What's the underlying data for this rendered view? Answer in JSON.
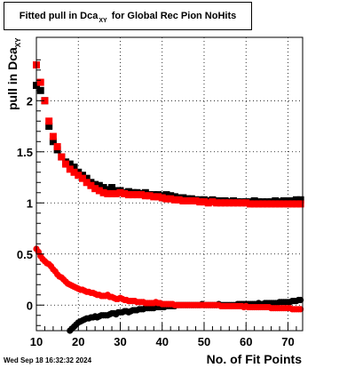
{
  "title": {
    "prefix": "Fitted pull in Dca",
    "subscript": "XY",
    "suffix": "for Global Rec Pion NoHits"
  },
  "ylabel": {
    "main": "pull in Dca",
    "subscript": "XY"
  },
  "xlabel": "No. of Fit Points",
  "datestamp": "Wed Sep 18 16:32:32 2024",
  "colors": {
    "series_black": "#000000",
    "series_red": "#ff0000",
    "grid": "#000000",
    "frame": "#000000"
  },
  "chart_data": {
    "type": "scatter",
    "xlim": [
      10,
      73.5
    ],
    "ylim": [
      -0.25,
      2.62
    ],
    "xticks": [
      10,
      20,
      30,
      40,
      50,
      60,
      70
    ],
    "yticks": [
      0,
      0.5,
      1,
      1.5,
      2
    ],
    "ytick_labels": [
      "0",
      "0.5",
      "1",
      "1.5",
      "2"
    ],
    "grid": true,
    "series": [
      {
        "color": "#000000",
        "marker": "square",
        "x": [
          10,
          11,
          12,
          13,
          14,
          15,
          16,
          17,
          18,
          19,
          20,
          21,
          22,
          23,
          24,
          25,
          26,
          27,
          28,
          29,
          30,
          31,
          32,
          33,
          34,
          35,
          36,
          37,
          38,
          39,
          40,
          41,
          42,
          43,
          44,
          45,
          46,
          47,
          48,
          49,
          50,
          51,
          52,
          53,
          54,
          55,
          56,
          57,
          58,
          59,
          60,
          61,
          62,
          63,
          64,
          65,
          66,
          67,
          68,
          69,
          70,
          71,
          72,
          73
        ],
        "y": [
          2.15,
          2.1,
          2.0,
          1.75,
          1.6,
          1.52,
          1.45,
          1.4,
          1.38,
          1.35,
          1.3,
          1.27,
          1.24,
          1.2,
          1.18,
          1.17,
          1.15,
          1.13,
          1.15,
          1.12,
          1.12,
          1.1,
          1.11,
          1.1,
          1.1,
          1.09,
          1.1,
          1.08,
          1.08,
          1.08,
          1.07,
          1.08,
          1.07,
          1.06,
          1.05,
          1.05,
          1.04,
          1.04,
          1.03,
          1.03,
          1.03,
          1.02,
          1.03,
          1.02,
          1.02,
          1.02,
          1.01,
          1.02,
          1.01,
          1.01,
          1.01,
          1.01,
          1.02,
          1.01,
          1.01,
          1.01,
          1.01,
          1.02,
          1.01,
          1.02,
          1.02,
          1.02,
          1.03,
          1.03
        ]
      },
      {
        "color": "#ff0000",
        "marker": "square",
        "x": [
          10,
          11,
          12,
          13,
          14,
          15,
          16,
          17,
          18,
          19,
          20,
          21,
          22,
          23,
          24,
          25,
          26,
          27,
          28,
          29,
          30,
          31,
          32,
          33,
          34,
          35,
          36,
          37,
          38,
          39,
          40,
          41,
          42,
          43,
          44,
          45,
          46,
          47,
          48,
          49,
          50,
          51,
          52,
          53,
          54,
          55,
          56,
          57,
          58,
          59,
          60,
          61,
          62,
          63,
          64,
          65,
          66,
          67,
          68,
          69,
          70,
          71,
          72,
          73
        ],
        "y": [
          2.35,
          2.18,
          2.0,
          1.8,
          1.65,
          1.55,
          1.45,
          1.38,
          1.33,
          1.3,
          1.27,
          1.24,
          1.2,
          1.17,
          1.14,
          1.12,
          1.1,
          1.09,
          1.09,
          1.09,
          1.1,
          1.09,
          1.08,
          1.08,
          1.08,
          1.08,
          1.07,
          1.07,
          1.06,
          1.06,
          1.05,
          1.04,
          1.04,
          1.03,
          1.03,
          1.02,
          1.02,
          1.02,
          1.02,
          1.01,
          1.01,
          1.0,
          1.01,
          1.0,
          1.0,
          1.0,
          1.0,
          1.0,
          1.0,
          1.0,
          1.0,
          0.99,
          0.99,
          0.99,
          0.99,
          0.99,
          0.99,
          0.99,
          0.99,
          0.99,
          0.99,
          0.99,
          0.99,
          0.99
        ]
      },
      {
        "color": "#000000",
        "marker": "circle",
        "x": [
          18,
          18.5,
          19,
          19.5,
          20,
          20.5,
          21,
          21.5,
          22,
          22.5,
          23,
          23.5,
          24,
          24.5,
          25,
          25.5,
          26,
          26.5,
          27,
          27.5,
          28,
          28.5,
          29,
          29.5,
          30,
          30.5,
          31,
          31.5,
          32,
          32.5,
          33,
          33.5,
          34,
          34.5,
          35,
          35.5,
          36,
          36.5,
          37,
          37.5,
          38,
          38.5,
          39,
          39.5,
          40,
          40.5,
          41,
          41.5,
          42,
          42.5,
          43,
          43.5,
          44,
          44.5,
          45,
          45.5,
          46,
          46.5,
          47,
          47.5,
          48,
          48.5,
          49,
          49.5,
          50,
          50.5,
          51,
          51.5,
          52,
          52.5,
          53,
          53.5,
          54,
          54.5,
          55,
          55.5,
          56,
          56.5,
          57,
          57.5,
          58,
          58.5,
          59,
          59.5,
          60,
          60.5,
          61,
          61.5,
          62,
          62.5,
          63,
          63.5,
          64,
          64.5,
          65,
          65.5,
          66,
          66.5,
          67,
          67.5,
          68,
          68.5,
          69,
          69.5,
          70,
          70.5,
          71,
          71.5,
          72,
          72.5,
          73
        ],
        "y": [
          -0.25,
          -0.23,
          -0.21,
          -0.19,
          -0.17,
          -0.16,
          -0.15,
          -0.14,
          -0.13,
          -0.13,
          -0.12,
          -0.12,
          -0.11,
          -0.12,
          -0.11,
          -0.1,
          -0.1,
          -0.1,
          -0.1,
          -0.09,
          -0.08,
          -0.08,
          -0.09,
          -0.07,
          -0.07,
          -0.07,
          -0.06,
          -0.06,
          -0.07,
          -0.06,
          -0.05,
          -0.05,
          -0.05,
          -0.04,
          -0.04,
          -0.04,
          -0.03,
          -0.03,
          -0.03,
          -0.03,
          -0.03,
          -0.02,
          -0.02,
          -0.02,
          -0.02,
          -0.02,
          -0.01,
          -0.01,
          -0.01,
          -0.01,
          -0.01,
          0.0,
          0.0,
          0.0,
          0.0,
          0.0,
          0.0,
          0.0,
          0.0,
          0.0,
          0.0,
          0.0,
          0.0,
          0.01,
          0.0,
          0.0,
          0.0,
          0.0,
          0.0,
          0.0,
          0.0,
          0.01,
          0.0,
          0.0,
          0.0,
          0.0,
          0.0,
          0.0,
          0.0,
          0.0,
          0.01,
          0.01,
          0.01,
          0.01,
          0.01,
          0.01,
          0.01,
          0.01,
          0.01,
          0.01,
          0.02,
          0.01,
          0.01,
          0.02,
          0.02,
          0.02,
          0.02,
          0.02,
          0.02,
          0.02,
          0.03,
          0.03,
          0.03,
          0.03,
          0.03,
          0.03,
          0.04,
          0.04,
          0.04,
          0.05,
          0.05
        ]
      },
      {
        "color": "#ff0000",
        "marker": "circle",
        "x": [
          10,
          10.5,
          11,
          11.5,
          12,
          12.5,
          13,
          13.5,
          14,
          14.5,
          15,
          15.5,
          16,
          16.5,
          17,
          17.5,
          18,
          18.5,
          19,
          19.5,
          20,
          20.5,
          21,
          21.5,
          22,
          22.5,
          23,
          23.5,
          24,
          24.5,
          25,
          25.5,
          26,
          26.5,
          27,
          27.5,
          28,
          28.5,
          29,
          29.5,
          30,
          30.5,
          31,
          31.5,
          32,
          32.5,
          33,
          33.5,
          34,
          34.5,
          35,
          35.5,
          36,
          36.5,
          37,
          37.5,
          38,
          38.5,
          39,
          39.5,
          40,
          40.5,
          41,
          41.5,
          42,
          42.5,
          43,
          43.5,
          44,
          44.5,
          45,
          45.5,
          46,
          46.5,
          47,
          47.5,
          48,
          48.5,
          49,
          49.5,
          50,
          50.5,
          51,
          51.5,
          52,
          52.5,
          53,
          53.5,
          54,
          54.5,
          55,
          55.5,
          56,
          56.5,
          57,
          57.5,
          58,
          58.5,
          59,
          59.5,
          60,
          60.5,
          61,
          61.5,
          62,
          62.5,
          63,
          63.5,
          64,
          64.5,
          65,
          65.5,
          66,
          66.5,
          67,
          67.5,
          68,
          68.5,
          69,
          69.5,
          70,
          70.5,
          71,
          71.5,
          72,
          72.5,
          73
        ],
        "y": [
          0.55,
          0.52,
          0.48,
          0.45,
          0.43,
          0.41,
          0.4,
          0.38,
          0.35,
          0.33,
          0.3,
          0.28,
          0.27,
          0.25,
          0.23,
          0.21,
          0.2,
          0.19,
          0.18,
          0.17,
          0.16,
          0.15,
          0.15,
          0.14,
          0.13,
          0.13,
          0.12,
          0.12,
          0.11,
          0.1,
          0.1,
          0.09,
          0.09,
          0.09,
          0.1,
          0.08,
          0.08,
          0.07,
          0.06,
          0.06,
          0.07,
          0.06,
          0.05,
          0.05,
          0.04,
          0.04,
          0.04,
          0.04,
          0.03,
          0.03,
          0.03,
          0.03,
          0.02,
          0.02,
          0.02,
          0.02,
          0.02,
          0.03,
          0.02,
          0.02,
          0.01,
          0.01,
          0.01,
          0.01,
          0.01,
          0.01,
          0.0,
          0.0,
          0.0,
          0.0,
          0.0,
          0.0,
          0.0,
          0.0,
          0.0,
          0.0,
          0.0,
          0.0,
          0.0,
          0.0,
          0.0,
          0.0,
          0.0,
          0.0,
          0.0,
          0.0,
          0.0,
          0.0,
          -0.01,
          -0.01,
          -0.01,
          -0.01,
          -0.01,
          -0.01,
          -0.01,
          -0.01,
          -0.01,
          -0.01,
          -0.01,
          -0.02,
          -0.01,
          -0.02,
          -0.02,
          -0.02,
          -0.02,
          -0.02,
          -0.02,
          -0.02,
          -0.02,
          -0.02,
          -0.02,
          -0.02,
          -0.03,
          -0.03,
          -0.03,
          -0.03,
          -0.03,
          -0.03,
          -0.03,
          -0.03,
          -0.03,
          -0.03,
          -0.04,
          -0.04,
          -0.04,
          -0.04,
          -0.04
        ]
      }
    ]
  }
}
